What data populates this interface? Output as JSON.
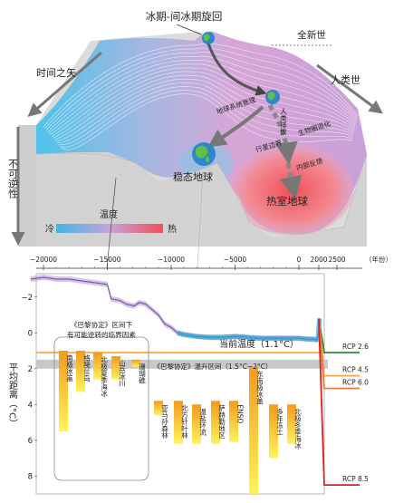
{
  "top": {
    "title_cycle": "冰期-间冰期旋回",
    "holocene": "全新世",
    "anthropocene": "人类世",
    "time_arrow": "时间之矢",
    "irreversibility": "不可逆性",
    "stable_earth": "稳态地球",
    "hothouse_earth": "热室地球",
    "earth_management": "地球系统管理",
    "human_emissions": "人类排放",
    "biosphere_degradation": "生物圈退化",
    "planetary_threshold": "行星边界",
    "internal_feedback": "内部反馈",
    "legend_title": "温度",
    "legend_cold": "冷",
    "legend_hot": "热"
  },
  "chart_data": {
    "type": "line",
    "x_ticks": [
      "−20000",
      "−15000",
      "−10000",
      "−5000",
      "0",
      "2000",
      "2500"
    ],
    "x_unit": "（年份）",
    "ylabel": "平均距离（°C）",
    "y_ticks": [
      "−2",
      "0",
      "2",
      "4",
      "6",
      "8"
    ],
    "ylim": [
      -3.2,
      9
    ],
    "temperature_series": {
      "x": [
        -21000,
        -20000,
        -19000,
        -18000,
        -17000,
        -16000,
        -15000,
        -14700,
        -14000,
        -13500,
        -12900,
        -12500,
        -12000,
        -11500,
        -11000,
        -10500,
        -10000,
        -9500,
        -9000,
        -8000,
        -7000,
        -6000,
        -5000,
        -4000,
        -3000,
        -2000,
        -1000,
        0,
        1000,
        1500,
        1800,
        1950,
        2000,
        2020
      ],
      "y": [
        -3.0,
        -3.1,
        -3.0,
        -3.0,
        -2.9,
        -2.8,
        -2.7,
        -1.9,
        -1.8,
        -1.6,
        -1.5,
        -1.7,
        -1.6,
        -1.3,
        -1.0,
        -0.5,
        -0.3,
        0.0,
        0.1,
        0.2,
        0.25,
        0.25,
        0.2,
        0.25,
        0.3,
        0.3,
        0.3,
        0.3,
        0.35,
        0.35,
        0.4,
        0.2,
        -0.3,
        -0.8
      ]
    },
    "current_temp_label": "当前温度（1.1°C）",
    "paris_range_label": "《巴黎协定》温升区间（1.5°C−2°C）",
    "reversible_box_label": "《巴黎协定》区间下有可能逆转的临界因素",
    "rcp": [
      {
        "name": "RCP 2.6",
        "value": 1.1,
        "color": "#2e8b3a"
      },
      {
        "name": "RCP 4.5",
        "value": 2.4,
        "color": "#f2a64a"
      },
      {
        "name": "RCP 6.0",
        "value": 3.1,
        "color": "#ee7a3a"
      },
      {
        "name": "RCP 8.5",
        "value": 8.5,
        "color": "#e02020"
      }
    ],
    "tipping_elements": [
      {
        "name": "南极冰盖",
        "low": 1.0,
        "high": 5.5
      },
      {
        "name": "格陵兰岛",
        "low": 1.0,
        "high": 3.3
      },
      {
        "name": "北极夏季海冰",
        "low": 1.1,
        "high": 2.6
      },
      {
        "name": "山岳冰川",
        "low": 1.3,
        "high": 2.6
      },
      {
        "name": "珊瑚礁",
        "low": 1.5,
        "high": 1.9
      },
      {
        "name": "亚马孙森林",
        "low": 3.8,
        "high": 4.6
      },
      {
        "name": "北方针叶林",
        "low": 3.8,
        "high": 6.2
      },
      {
        "name": "温盐环流",
        "low": 4.0,
        "high": 6.2
      },
      {
        "name": "萨赫勒地区",
        "low": 3.8,
        "high": 6.2
      },
      {
        "name": "ENSO",
        "low": 3.8,
        "high": 6.1
      },
      {
        "name": "东南极冰盖",
        "low": 1.9,
        "high": 9.0
      },
      {
        "name": "多年冻土",
        "low": 4.0,
        "high": 7.0
      },
      {
        "name": "北极冬季海冰",
        "low": 4.0,
        "high": 6.2
      }
    ]
  },
  "colors": {
    "cold": "#3fb6e6",
    "hot": "#f0505a",
    "bar_top": "#f5a623",
    "bar_bottom": "#ffe34d",
    "paris_band": "#c8c8c8",
    "current_line": "#f7a23a"
  }
}
